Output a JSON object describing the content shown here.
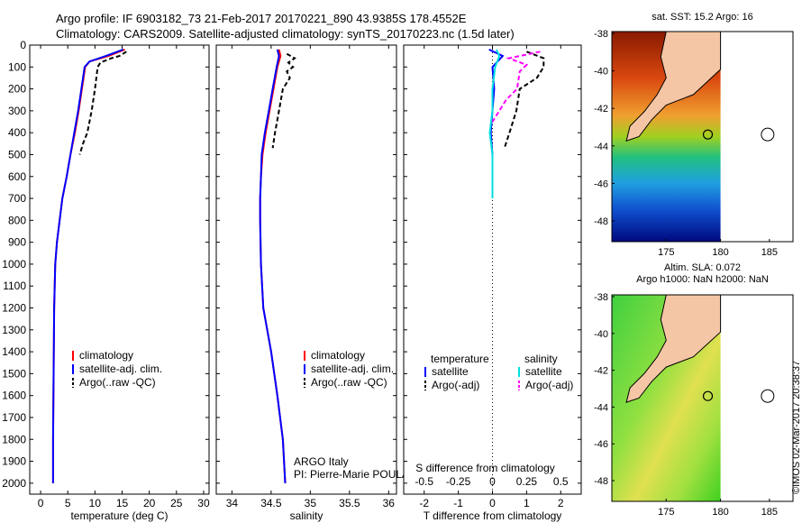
{
  "title": {
    "line1": "Argo profile: IF 6903182_73 21-Feb-2017 20170221_890 43.9385S 178.4552E",
    "line2": "Climatology: CARS2009. Satellite-adjusted climatology: synTS_20170223.nc (1.5d later)"
  },
  "chart_data": [
    {
      "type": "line",
      "id": "temperature",
      "xlabel": "temperature (deg C)",
      "ylabel": "",
      "xlim": [
        -2,
        31
      ],
      "ylim": [
        2050,
        0
      ],
      "xticks": [
        "0",
        "5",
        "10",
        "15",
        "20",
        "25",
        "30"
      ],
      "yticks": [
        "0",
        "100",
        "200",
        "300",
        "400",
        "500",
        "600",
        "700",
        "800",
        "900",
        "1000",
        "1100",
        "1200",
        "1300",
        "1400",
        "1500",
        "1600",
        "1700",
        "1800",
        "1900",
        "2000"
      ],
      "legend": [
        "climatology",
        "satellite-adj. clim.",
        "Argo(..raw -QC)"
      ],
      "series": [
        {
          "name": "climatology",
          "color": "#ff0000",
          "x": [
            15.5,
            12.5,
            9.0,
            8.2,
            7.6,
            7.0,
            6.3,
            5.5,
            4.8,
            4.0,
            3.5,
            3.0,
            2.7,
            2.5,
            2.4,
            2.3,
            2.3
          ],
          "y": [
            20,
            50,
            75,
            100,
            200,
            300,
            400,
            500,
            600,
            700,
            800,
            900,
            1000,
            1200,
            1500,
            1800,
            2000
          ]
        },
        {
          "name": "satellite-adj. clim.",
          "color": "#0000ff",
          "x": [
            15.2,
            12.0,
            9.0,
            8.1,
            7.5,
            6.9,
            6.2,
            5.5,
            4.8,
            4.0,
            3.5,
            3.0,
            2.7,
            2.5,
            2.4,
            2.3,
            2.3
          ],
          "y": [
            20,
            50,
            75,
            100,
            200,
            300,
            400,
            500,
            600,
            700,
            800,
            900,
            1000,
            1200,
            1500,
            1800,
            2000
          ]
        },
        {
          "name": "Argo(..raw -QC)",
          "color": "#000000",
          "x": [
            15.8,
            14.5,
            13.0,
            11.0,
            10.5,
            10.0,
            9.4,
            8.6,
            7.8,
            7.2
          ],
          "y": [
            30,
            50,
            60,
            80,
            100,
            200,
            300,
            400,
            450,
            500
          ]
        }
      ]
    },
    {
      "type": "line",
      "id": "salinity",
      "xlabel": "salinity",
      "xlim": [
        33.8,
        36.1
      ],
      "ylim": [
        2050,
        0
      ],
      "xticks": [
        "34",
        "34.5",
        "35",
        "35.5",
        "36"
      ],
      "legend": [
        "climatology",
        "satellite-adj. clim.",
        "Argo(..raw -QC)"
      ],
      "series": [
        {
          "name": "climatology",
          "color": "#ff0000",
          "x": [
            34.6,
            34.62,
            34.58,
            34.53,
            34.48,
            34.43,
            34.39,
            34.37,
            34.36,
            34.36,
            34.37,
            34.4,
            34.5,
            34.58,
            34.65,
            34.68
          ],
          "y": [
            20,
            50,
            100,
            200,
            300,
            400,
            500,
            600,
            700,
            800,
            1000,
            1200,
            1400,
            1600,
            1800,
            2000
          ]
        },
        {
          "name": "satellite-adj. clim.",
          "color": "#0000ff",
          "x": [
            34.58,
            34.6,
            34.57,
            34.52,
            34.47,
            34.42,
            34.38,
            34.37,
            34.36,
            34.36,
            34.37,
            34.4,
            34.5,
            34.58,
            34.65,
            34.68
          ],
          "y": [
            20,
            50,
            100,
            200,
            300,
            400,
            500,
            600,
            700,
            800,
            1000,
            1200,
            1400,
            1600,
            1800,
            2000
          ]
        },
        {
          "name": "Argo(..raw -QC)",
          "color": "#000000",
          "x": [
            34.7,
            34.8,
            34.72,
            34.78,
            34.7,
            34.74,
            34.65,
            34.6,
            34.55,
            34.52
          ],
          "y": [
            40,
            60,
            80,
            100,
            120,
            150,
            200,
            300,
            400,
            470
          ]
        }
      ],
      "annotation": [
        "ARGO Italy",
        "PI: Pierre-Marie POULAIN"
      ]
    },
    {
      "type": "line",
      "id": "difference",
      "xlabel": "T difference from climatology",
      "xlabel_top": "S difference from climatology",
      "xlim": [
        -2.6,
        2.6
      ],
      "ylim": [
        2050,
        0
      ],
      "xticks": [
        "-2",
        "-1",
        "0",
        "1",
        "2"
      ],
      "xticks_top": [
        "-0.5",
        "-0.25",
        "0",
        "0.25",
        "0.5"
      ],
      "legend_titles": [
        "temperature",
        "salinity"
      ],
      "legend": [
        "satellite",
        "Argo(-adj)",
        "satellite",
        "Argo(-adj)"
      ],
      "series": [
        {
          "name": "T satellite",
          "color": "#0000ff",
          "x": [
            -0.1,
            0.3,
            0.0,
            0.05,
            0.0,
            -0.05,
            0.0,
            0.0
          ],
          "y": [
            20,
            50,
            100,
            200,
            300,
            400,
            500,
            700
          ]
        },
        {
          "name": "T Argo(-adj)",
          "color": "#000000",
          "x": [
            1.0,
            1.5,
            1.5,
            1.3,
            0.8,
            0.7,
            0.5,
            0.35
          ],
          "y": [
            30,
            60,
            100,
            150,
            200,
            300,
            400,
            470
          ]
        },
        {
          "name": "S satellite",
          "color": "#00e0e0",
          "x": [
            0.03,
            0.05,
            0.02,
            0.0,
            0.0,
            -0.02,
            0.0,
            0.0
          ],
          "y": [
            20,
            50,
            100,
            200,
            300,
            400,
            500,
            700
          ]
        },
        {
          "name": "S Argo(-adj)",
          "color": "#ff00ff",
          "x": [
            0.35,
            0.12,
            0.25,
            0.2,
            0.18,
            0.1,
            0.05,
            0.0
          ],
          "y": [
            30,
            60,
            90,
            120,
            200,
            250,
            300,
            350
          ]
        }
      ]
    },
    {
      "type": "heatmap",
      "id": "sst-map",
      "title": "sat. SST: 15.2 Argo: 16",
      "xticks": [
        "175",
        "180",
        "185"
      ],
      "yticks": [
        "-38",
        "-40",
        "-42",
        "-44",
        "-46",
        "-48"
      ]
    },
    {
      "type": "heatmap",
      "id": "sla-map",
      "title": "Altim. SLA: 0.072",
      "subtitle": "Argo h1000: NaN h2000: NaN",
      "xticks": [
        "175",
        "180",
        "185"
      ],
      "yticks": [
        "-38",
        "-40",
        "-42",
        "-44",
        "-46",
        "-48"
      ]
    }
  ],
  "footer": "©IMOS 02-Mar-2017 20:38:37"
}
